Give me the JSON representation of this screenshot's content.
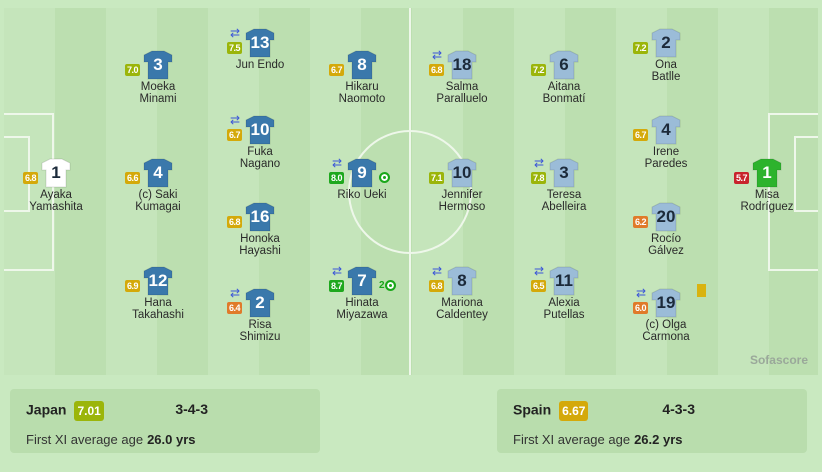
{
  "colors": {
    "pitch": "#c5e5bb",
    "japan_kit": "#3a78ab",
    "japan_gk_kit": "#ffffff",
    "spain_kit": "#9bbcd8",
    "spain_gk_kit": "#2db32d",
    "rating_8plus": "#1ea81e",
    "rating_7": "#9bb50a",
    "rating_6_5": "#d4a90a",
    "rating_6": "#e07a2a",
    "rating_low": "#c8232c",
    "sub_icon": "#3a55d8",
    "yellow_card": "#d9b310"
  },
  "players": [
    {
      "team": "japan",
      "number": "1",
      "name": "Ayaka Yamashita",
      "rating": "6.8",
      "gk": true
    },
    {
      "team": "japan",
      "number": "3",
      "name": "Moeka Minami",
      "rating": "7.0"
    },
    {
      "team": "japan",
      "number": "4",
      "name": "(c) Saki Kumagai",
      "rating": "6.6"
    },
    {
      "team": "japan",
      "number": "12",
      "name": "Hana Takahashi",
      "rating": "6.9"
    },
    {
      "team": "japan",
      "number": "13",
      "name": "Jun Endo",
      "rating": "7.5",
      "sub": true
    },
    {
      "team": "japan",
      "number": "10",
      "name": "Fuka Nagano",
      "rating": "6.7",
      "sub": true
    },
    {
      "team": "japan",
      "number": "16",
      "name": "Honoka Hayashi",
      "rating": "6.8"
    },
    {
      "team": "japan",
      "number": "2",
      "name": "Risa Shimizu",
      "rating": "6.4",
      "sub": true
    },
    {
      "team": "japan",
      "number": "8",
      "name": "Hikaru Naomoto",
      "rating": "6.7"
    },
    {
      "team": "japan",
      "number": "9",
      "name": "Riko Ueki",
      "rating": "8.0",
      "sub": true,
      "goals": "1"
    },
    {
      "team": "japan",
      "number": "7",
      "name": "Hinata Miyazawa",
      "rating": "8.7",
      "sub": true,
      "goals": "2"
    },
    {
      "team": "spain",
      "number": "18",
      "name": "Salma Paralluelo",
      "rating": "6.8",
      "sub": true
    },
    {
      "team": "spain",
      "number": "10",
      "name": "Jennifer Hermoso",
      "rating": "7.1"
    },
    {
      "team": "spain",
      "number": "8",
      "name": "Mariona Caldentey",
      "rating": "6.8",
      "sub": true
    },
    {
      "team": "spain",
      "number": "6",
      "name": "Aitana Bonmatí",
      "rating": "7.2"
    },
    {
      "team": "spain",
      "number": "3",
      "name": "Teresa Abelleira",
      "rating": "7.8",
      "sub": true
    },
    {
      "team": "spain",
      "number": "11",
      "name": "Alexia Putellas",
      "rating": "6.5",
      "sub": true
    },
    {
      "team": "spain",
      "number": "2",
      "name": "Ona Batlle",
      "rating": "7.2"
    },
    {
      "team": "spain",
      "number": "4",
      "name": "Irene Paredes",
      "rating": "6.7"
    },
    {
      "team": "spain",
      "number": "20",
      "name": "Rocío Gálvez",
      "rating": "6.2"
    },
    {
      "team": "spain",
      "number": "19",
      "name": "(c) Olga Carmona",
      "rating": "6.0",
      "sub": true,
      "yellow_card": true
    },
    {
      "team": "spain",
      "number": "1",
      "name": "Misa Rodríguez",
      "rating": "5.7",
      "gk": true
    }
  ],
  "brand": "Sofascore",
  "summary": {
    "home": {
      "team": "Japan",
      "rating": "7.01",
      "formation": "3-4-3",
      "age_label": "First XI average age",
      "age": "26.0 yrs"
    },
    "away": {
      "team": "Spain",
      "rating": "6.67",
      "formation": "4-3-3",
      "age_label": "First XI average age",
      "age": "26.2 yrs"
    }
  }
}
